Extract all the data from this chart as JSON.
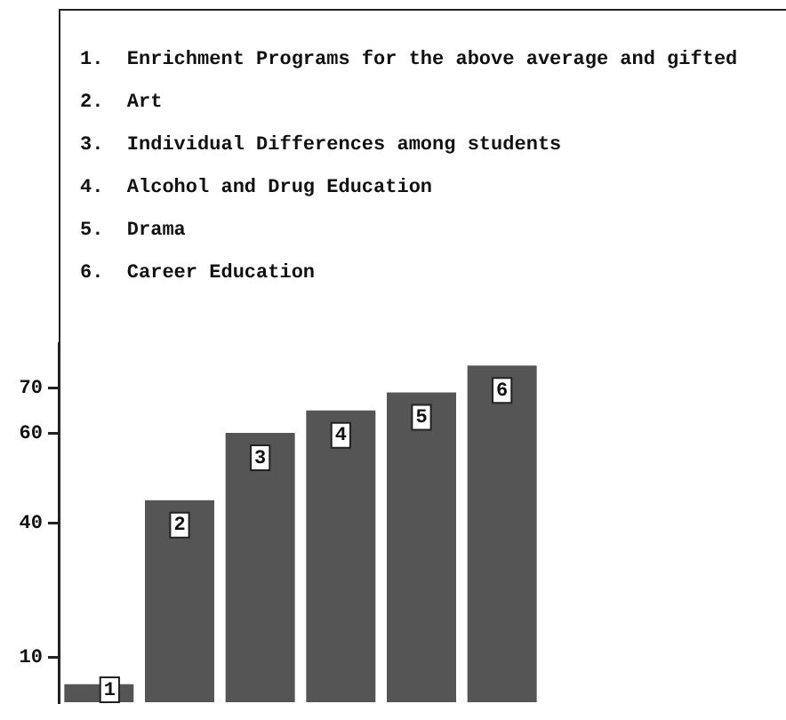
{
  "chart_data": {
    "type": "bar",
    "categories": [
      "1",
      "2",
      "3",
      "4",
      "5",
      "6"
    ],
    "values": [
      4,
      45,
      60,
      65,
      69,
      75
    ],
    "color": "#555555",
    "ylim": [
      0,
      80
    ],
    "yticks": [
      10,
      40,
      60,
      70
    ],
    "grid": false,
    "legend": false,
    "annotations": [
      "1.  Enrichment Programs for the above average and gifted",
      "2.  Art",
      "3.  Individual Differences among students",
      "4.  Alcohol and Drug Education",
      "5.  Drama",
      "6.  Career Education"
    ]
  }
}
